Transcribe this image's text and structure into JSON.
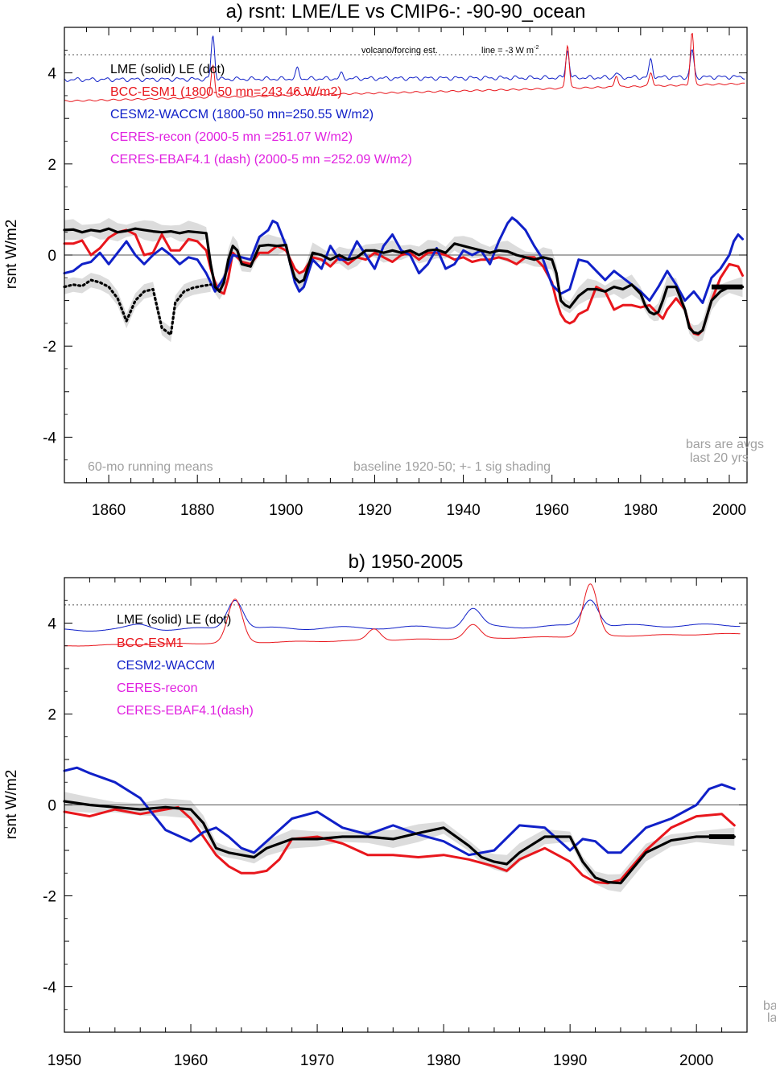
{
  "colors": {
    "lme": "#000000",
    "bcc": "#e8161c",
    "cesm": "#1020c8",
    "ceres": "#e020e0",
    "note": "#a0a0a0",
    "shade": "#dcdcdc",
    "ref": "#555555"
  },
  "chart_data": [
    {
      "type": "line",
      "title": "a) rsnt: LME/LE vs CMIP6-: -90-90_ocean",
      "ylabel": "rsnt W/m2",
      "xlim": [
        1850,
        2004
      ],
      "ylim": [
        -5,
        5
      ],
      "xticks": [
        1860,
        1880,
        1900,
        1920,
        1940,
        1960,
        1980,
        2000
      ],
      "xtick_labels": [
        "1860",
        "1880",
        "1900",
        "1920",
        "1940",
        "1960",
        "1980",
        "2000"
      ],
      "yticks": [
        -4,
        -2,
        0,
        2,
        4
      ],
      "ytick_labels": [
        "-4",
        "-2",
        "0",
        "2",
        "4"
      ],
      "legend": [
        {
          "text": "LME (solid)    LE (dot)",
          "color": "lme"
        },
        {
          "text": "BCC-ESM1 (1800-50 mn=243.46 W/m2)",
          "color": "bcc"
        },
        {
          "text": "CESM2-WACCM (1800-50 mn=250.55 W/m2)",
          "color": "cesm"
        },
        {
          "text": "CERES-recon (2000-5 mn =251.07 W/m2)",
          "color": "ceres"
        },
        {
          "text": "CERES-EBAF4.1 (dash) (2000-5 mn =252.09 W/m2)",
          "color": "ceres"
        }
      ],
      "annotations": {
        "volcano": "volcano/forcing est.",
        "volcano_line": "line = -3 W m",
        "volcano_sup": "-2",
        "running": "60-mo running means",
        "baseline": "baseline 1920-50; +- 1 sig shading",
        "bars1": "bars are avgs",
        "bars2": "last 20 yrs"
      },
      "ref_line_y": 4.4,
      "series": [
        {
          "name": "LME",
          "color": "lme",
          "width": 3.2,
          "x": [
            1850,
            1852,
            1854,
            1856,
            1858,
            1860,
            1862,
            1864,
            1866,
            1868,
            1870,
            1872,
            1874,
            1876,
            1878,
            1880,
            1882,
            1883,
            1884,
            1885,
            1886,
            1887,
            1888,
            1889,
            1890,
            1892,
            1894,
            1896,
            1898,
            1900,
            1901,
            1902,
            1903,
            1904,
            1906,
            1908,
            1910,
            1912,
            1914,
            1916,
            1918,
            1920,
            1922,
            1924,
            1926,
            1928,
            1930,
            1932,
            1934,
            1936,
            1938,
            1940,
            1942,
            1944,
            1946,
            1948,
            1950,
            1952,
            1954,
            1956,
            1958,
            1960,
            1961,
            1962,
            1963,
            1964,
            1966,
            1968,
            1970,
            1972,
            1974,
            1976,
            1978,
            1980,
            1981,
            1982,
            1983,
            1984,
            1985,
            1986,
            1988,
            1990,
            1991,
            1992,
            1993,
            1994,
            1996,
            1998,
            2000,
            2002,
            2003
          ],
          "y": [
            0.55,
            0.56,
            0.5,
            0.55,
            0.52,
            0.58,
            0.5,
            0.53,
            0.58,
            0.55,
            0.52,
            0.5,
            0.52,
            0.48,
            0.52,
            0.5,
            0.48,
            -0.2,
            -0.7,
            -0.8,
            -0.6,
            -0.1,
            0.2,
            0.1,
            -0.2,
            -0.25,
            0.2,
            0.22,
            0.2,
            0.22,
            -0.2,
            -0.5,
            -0.6,
            -0.55,
            0.05,
            0.0,
            -0.1,
            0.0,
            -0.1,
            -0.05,
            0.1,
            0.1,
            0.05,
            0.1,
            0.05,
            0.1,
            0.0,
            0.1,
            0.12,
            0.05,
            0.25,
            0.2,
            0.15,
            0.1,
            0.05,
            0.1,
            0.08,
            0.0,
            -0.05,
            -0.1,
            -0.05,
            -0.1,
            -0.4,
            -1.0,
            -1.1,
            -1.15,
            -0.9,
            -0.75,
            -0.75,
            -0.8,
            -0.7,
            -0.75,
            -0.65,
            -0.85,
            -1.1,
            -1.25,
            -1.3,
            -1.25,
            -1.0,
            -0.7,
            -0.7,
            -1.2,
            -1.6,
            -1.7,
            -1.72,
            -1.65,
            -1.0,
            -0.8,
            -0.7,
            -0.7,
            -0.7
          ]
        },
        {
          "name": "LE",
          "color": "lme",
          "width": 3.2,
          "dash": "2 4",
          "x": [
            1850,
            1852,
            1854,
            1856,
            1858,
            1860,
            1862,
            1864,
            1866,
            1868,
            1870,
            1872,
            1874,
            1875,
            1877,
            1879,
            1881,
            1883
          ],
          "y": [
            -0.7,
            -0.65,
            -0.68,
            -0.55,
            -0.6,
            -0.7,
            -0.95,
            -1.45,
            -1.0,
            -0.8,
            -0.75,
            -1.6,
            -1.75,
            -1.05,
            -0.8,
            -0.72,
            -0.68,
            -0.65
          ]
        },
        {
          "name": "BCC-ESM1",
          "color": "bcc",
          "width": 3,
          "x": [
            1850,
            1852,
            1854,
            1856,
            1858,
            1860,
            1862,
            1864,
            1866,
            1868,
            1870,
            1872,
            1874,
            1876,
            1878,
            1880,
            1882,
            1883,
            1884,
            1885,
            1886,
            1887,
            1888,
            1890,
            1892,
            1894,
            1896,
            1898,
            1900,
            1901,
            1902,
            1903,
            1904,
            1906,
            1908,
            1910,
            1912,
            1914,
            1916,
            1918,
            1920,
            1922,
            1924,
            1926,
            1928,
            1930,
            1932,
            1934,
            1936,
            1938,
            1940,
            1942,
            1944,
            1946,
            1948,
            1950,
            1952,
            1954,
            1956,
            1958,
            1960,
            1961,
            1962,
            1963,
            1964,
            1965,
            1966,
            1968,
            1970,
            1972,
            1974,
            1976,
            1978,
            1980,
            1982,
            1984,
            1985,
            1986,
            1988,
            1990,
            1991,
            1992,
            1993,
            1994,
            1996,
            1998,
            2000,
            2002,
            2003
          ],
          "y": [
            0.25,
            0.25,
            0.32,
            0.0,
            0.15,
            0.38,
            0.5,
            0.55,
            0.45,
            0.0,
            0.05,
            0.45,
            0.1,
            0.1,
            0.35,
            0.3,
            0.1,
            -0.3,
            -0.6,
            -0.8,
            -0.85,
            -0.5,
            0.05,
            -0.15,
            -0.2,
            0.05,
            0.05,
            0.2,
            0.1,
            -0.1,
            -0.3,
            -0.4,
            -0.35,
            -0.05,
            -0.1,
            -0.25,
            -0.05,
            -0.2,
            -0.05,
            -0.1,
            0.05,
            -0.05,
            -0.15,
            0.0,
            0.05,
            -0.1,
            0.05,
            0.05,
            0.0,
            -0.1,
            -0.05,
            -0.15,
            -0.1,
            -0.1,
            -0.05,
            -0.1,
            -0.2,
            -0.05,
            -0.05,
            -0.25,
            -0.6,
            -1.0,
            -1.3,
            -1.45,
            -1.5,
            -1.45,
            -1.3,
            -1.2,
            -0.7,
            -0.8,
            -1.2,
            -1.1,
            -1.1,
            -1.15,
            -1.1,
            -1.3,
            -1.4,
            -1.2,
            -0.95,
            -1.2,
            -1.55,
            -1.72,
            -1.75,
            -1.65,
            -1.0,
            -0.5,
            -0.2,
            -0.25,
            -0.45
          ]
        },
        {
          "name": "CESM2-WACCM",
          "color": "cesm",
          "width": 3,
          "x": [
            1850,
            1852,
            1854,
            1856,
            1858,
            1860,
            1862,
            1864,
            1866,
            1868,
            1870,
            1872,
            1874,
            1876,
            1878,
            1880,
            1882,
            1884,
            1886,
            1888,
            1890,
            1892,
            1894,
            1896,
            1897,
            1898,
            1900,
            1902,
            1903,
            1904,
            1906,
            1908,
            1910,
            1912,
            1914,
            1916,
            1918,
            1920,
            1922,
            1924,
            1926,
            1928,
            1930,
            1932,
            1934,
            1936,
            1938,
            1940,
            1942,
            1944,
            1946,
            1948,
            1950,
            1951,
            1952,
            1954,
            1956,
            1958,
            1960,
            1962,
            1964,
            1966,
            1968,
            1970,
            1972,
            1974,
            1976,
            1978,
            1980,
            1982,
            1984,
            1986,
            1988,
            1990,
            1992,
            1994,
            1996,
            1998,
            2000,
            2001,
            2002,
            2003
          ],
          "y": [
            -0.4,
            -0.35,
            -0.2,
            -0.15,
            0.05,
            -0.2,
            0.05,
            0.3,
            0.0,
            -0.2,
            0.0,
            0.15,
            0.0,
            -0.2,
            -0.05,
            -0.1,
            -0.4,
            -0.8,
            -0.5,
            0.0,
            -0.05,
            -0.1,
            0.4,
            0.55,
            0.75,
            0.7,
            0.2,
            -0.6,
            -0.8,
            -0.7,
            -0.1,
            -0.3,
            0.2,
            -0.1,
            -0.1,
            0.3,
            0.0,
            -0.3,
            0.2,
            0.45,
            0.1,
            0.0,
            -0.4,
            -0.2,
            0.15,
            -0.3,
            -0.2,
            0.1,
            0.0,
            0.1,
            -0.2,
            0.3,
            0.7,
            0.82,
            0.75,
            0.55,
            0.2,
            -0.1,
            -0.65,
            -0.85,
            -0.75,
            -0.1,
            -0.15,
            -0.35,
            -0.55,
            -0.35,
            -0.5,
            -0.65,
            -0.8,
            -1.0,
            -0.7,
            -0.35,
            -0.65,
            -1.0,
            -0.8,
            -1.05,
            -0.5,
            -0.3,
            0.0,
            0.3,
            0.45,
            0.35
          ]
        }
      ],
      "shade": {
        "x": [
          1850,
          1860,
          1870,
          1880,
          1890,
          1900,
          1910,
          1920,
          1930,
          1940,
          1950,
          1960,
          1970,
          1980,
          1990,
          2003
        ],
        "half_width": 0.18
      },
      "bar": {
        "x0": 1996,
        "x1": 2003,
        "y": -0.7
      }
    },
    {
      "type": "line",
      "title": "b) 1950-2005",
      "ylabel": "rsnt W/m2",
      "xlim": [
        1950,
        2004
      ],
      "ylim": [
        -5,
        5
      ],
      "xticks": [
        1950,
        1960,
        1970,
        1980,
        1990,
        2000
      ],
      "xtick_labels": [
        "1950",
        "1960",
        "1970",
        "1980",
        "1990",
        "2000"
      ],
      "yticks": [
        -4,
        -2,
        0,
        2,
        4
      ],
      "ytick_labels": [
        "-4",
        "-2",
        "0",
        "2",
        "4"
      ],
      "legend": [
        {
          "text": "LME (solid)       LE (dot)",
          "color": "lme"
        },
        {
          "text": "BCC-ESM1",
          "color": "bcc"
        },
        {
          "text": "CESM2-WACCM",
          "color": "cesm"
        },
        {
          "text": "CERES-recon",
          "color": "ceres"
        },
        {
          "text": "CERES-EBAF4.1(dash)",
          "color": "ceres"
        }
      ],
      "annotations": {
        "bars1": "ba",
        "bars2": "la"
      },
      "ref_line_y": 4.4,
      "series": [
        {
          "name": "LME",
          "color": "lme",
          "width": 3.2,
          "x": [
            1950,
            1952,
            1954,
            1956,
            1958,
            1960,
            1961,
            1962,
            1963,
            1964,
            1965,
            1966,
            1968,
            1970,
            1972,
            1974,
            1976,
            1978,
            1980,
            1982,
            1983,
            1984,
            1985,
            1986,
            1988,
            1990,
            1991,
            1992,
            1993,
            1994,
            1996,
            1998,
            2000,
            2002,
            2003
          ],
          "y": [
            0.08,
            0.0,
            -0.05,
            -0.1,
            -0.05,
            -0.1,
            -0.4,
            -0.95,
            -1.05,
            -1.1,
            -1.15,
            -0.95,
            -0.75,
            -0.75,
            -0.7,
            -0.7,
            -0.75,
            -0.62,
            -0.5,
            -0.9,
            -1.15,
            -1.25,
            -1.3,
            -1.05,
            -0.7,
            -0.7,
            -1.25,
            -1.6,
            -1.7,
            -1.72,
            -1.05,
            -0.78,
            -0.7,
            -0.7,
            -0.7
          ]
        },
        {
          "name": "BCC-ESM1",
          "color": "bcc",
          "width": 3,
          "x": [
            1950,
            1952,
            1954,
            1956,
            1958,
            1959,
            1960,
            1961,
            1962,
            1963,
            1964,
            1965,
            1966,
            1967,
            1968,
            1970,
            1972,
            1974,
            1976,
            1978,
            1980,
            1982,
            1984,
            1985,
            1986,
            1988,
            1990,
            1991,
            1992,
            1993,
            1994,
            1996,
            1998,
            2000,
            2002,
            2003
          ],
          "y": [
            -0.15,
            -0.25,
            -0.1,
            -0.2,
            -0.1,
            -0.05,
            -0.3,
            -0.7,
            -1.1,
            -1.35,
            -1.5,
            -1.5,
            -1.45,
            -1.2,
            -0.75,
            -0.7,
            -0.85,
            -1.1,
            -1.1,
            -1.15,
            -1.1,
            -1.2,
            -1.35,
            -1.45,
            -1.2,
            -0.95,
            -1.25,
            -1.55,
            -1.7,
            -1.72,
            -1.65,
            -1.0,
            -0.5,
            -0.25,
            -0.2,
            -0.45
          ]
        },
        {
          "name": "CESM2-WACCM",
          "color": "cesm",
          "width": 3,
          "x": [
            1950,
            1951,
            1952,
            1954,
            1956,
            1958,
            1960,
            1961,
            1962,
            1963,
            1964,
            1965,
            1966,
            1968,
            1970,
            1972,
            1974,
            1975,
            1976,
            1978,
            1980,
            1982,
            1984,
            1986,
            1988,
            1990,
            1991,
            1992,
            1993,
            1994,
            1996,
            1998,
            2000,
            2001,
            2002,
            2003
          ],
          "y": [
            0.75,
            0.82,
            0.7,
            0.5,
            0.15,
            -0.55,
            -0.8,
            -0.6,
            -0.5,
            -0.7,
            -0.95,
            -1.05,
            -0.8,
            -0.3,
            -0.15,
            -0.5,
            -0.65,
            -0.55,
            -0.45,
            -0.65,
            -0.8,
            -1.1,
            -1.0,
            -0.45,
            -0.5,
            -1.0,
            -0.75,
            -0.8,
            -1.05,
            -1.05,
            -0.5,
            -0.3,
            0.0,
            0.35,
            0.45,
            0.35
          ]
        }
      ],
      "shade": {
        "x": [
          1950,
          1955,
          1960,
          1965,
          1970,
          1975,
          1980,
          1985,
          1990,
          1995,
          2000,
          2003
        ],
        "half_width": 0.16
      },
      "bar": {
        "x0": 2001,
        "x1": 2003,
        "y": -0.7
      }
    }
  ]
}
